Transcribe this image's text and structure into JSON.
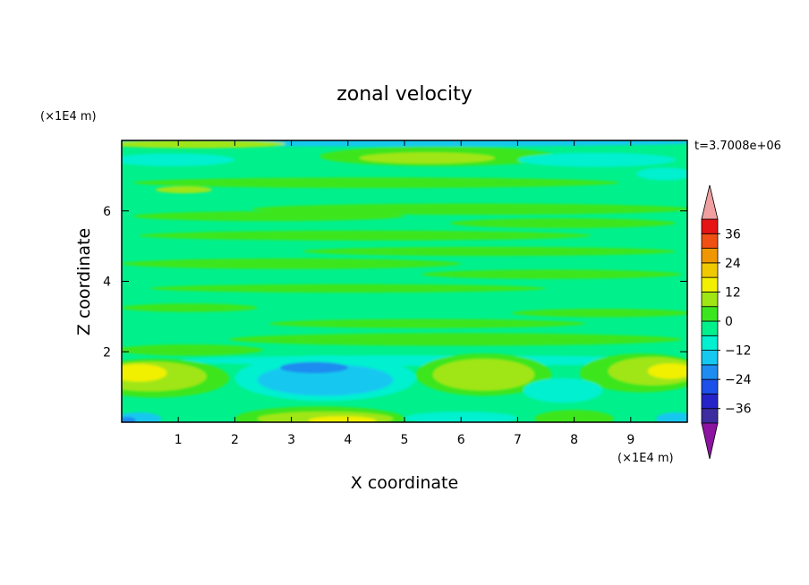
{
  "chart_data": {
    "type": "heatmap",
    "title": "zonal velocity",
    "xlabel": "X coordinate",
    "ylabel": "Z coordinate",
    "x_unit": "(×1E4 m)",
    "y_unit": "(×1E4 m)",
    "time_label": "t=3.7008e+06",
    "xlim": [
      0,
      10
    ],
    "ylim": [
      0,
      8
    ],
    "x_ticks": [
      "1",
      "2",
      "3",
      "4",
      "5",
      "6",
      "7",
      "8",
      "9"
    ],
    "y_ticks": [
      "2",
      "4",
      "6"
    ],
    "colorbar": {
      "levels": [
        -42,
        -36,
        -30,
        -24,
        -18,
        -12,
        -6,
        0,
        6,
        12,
        18,
        24,
        30,
        36,
        42
      ],
      "colors": [
        "#5a1e8c",
        "#3c2ca0",
        "#2424c8",
        "#1c50e8",
        "#1e8cf0",
        "#14c8f0",
        "#00f0d0",
        "#00f08c",
        "#3ce61e",
        "#a0e614",
        "#f0f000",
        "#f0c800",
        "#f09600",
        "#f05014",
        "#e61414",
        "#f0a0a0"
      ],
      "under_color": "#8c14a0",
      "over_color": "#f0a0a0",
      "tick_labels": [
        "36",
        "24",
        "12",
        "0",
        "-12",
        "-24",
        "-36"
      ],
      "tick_values": [
        36,
        24,
        12,
        0,
        -12,
        -24,
        -36
      ]
    },
    "field_colors": {
      "background": "#00f08c",
      "light_green": "#3ce61e",
      "yellow_green": "#a0e614",
      "yellow": "#f0f000",
      "cyan_green": "#00f0d0",
      "cyan": "#14c8f0",
      "blue": "#1e8cf0"
    }
  }
}
